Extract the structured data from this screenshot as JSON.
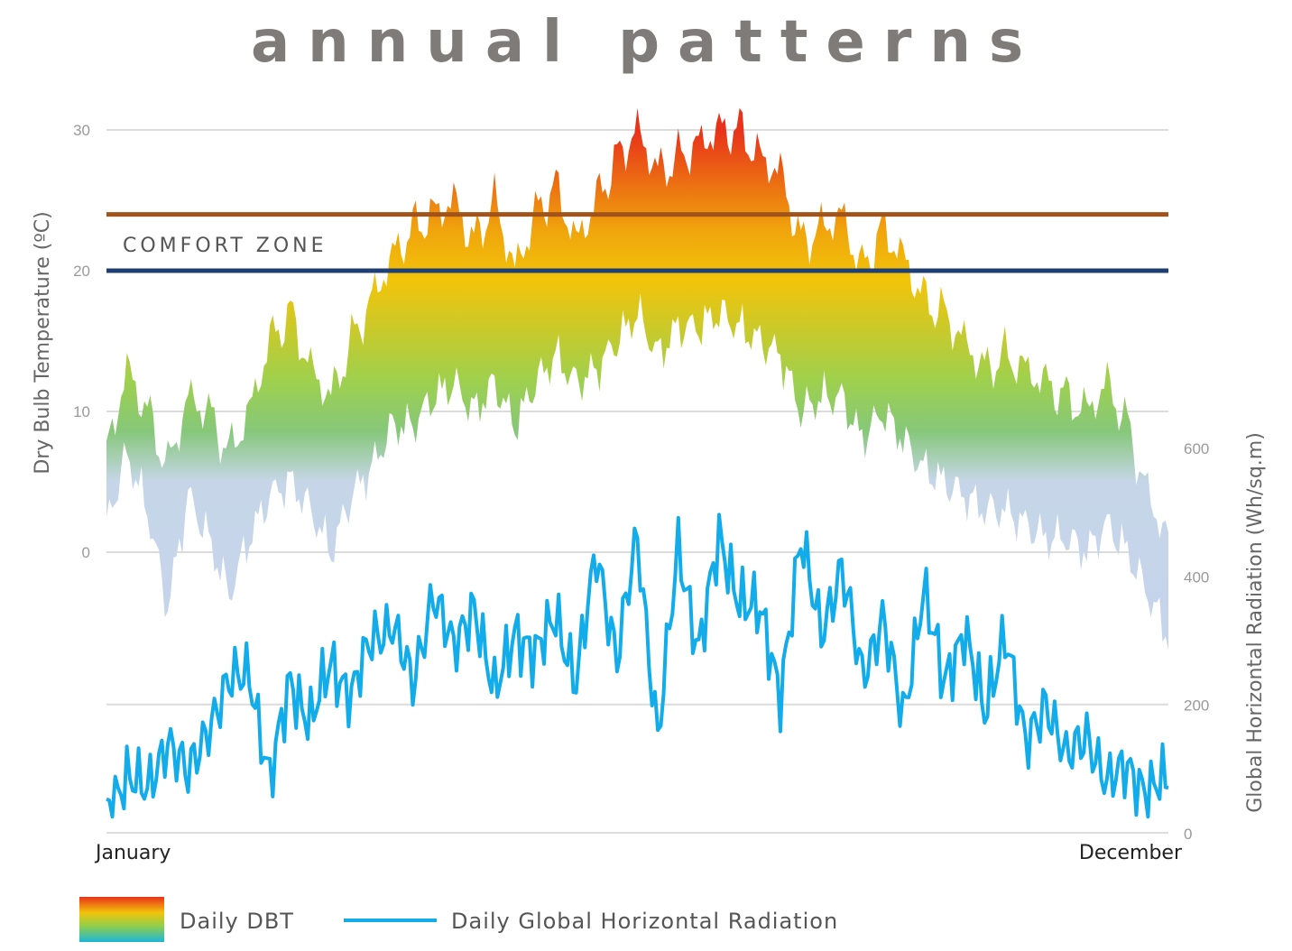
{
  "chart_data": {
    "type": "area",
    "title": "annual patterns",
    "x_start_label": "January",
    "x_end_label": "December",
    "y_left": {
      "label": "Dry Bulb Temperature  (ºC)",
      "ticks": [
        0,
        10,
        20,
        30
      ],
      "lim": [
        -20,
        30
      ]
    },
    "y_right": {
      "label": "Global Horizontal Radiation  (Wh/sq.m)",
      "ticks": [
        0,
        200,
        400,
        600
      ],
      "lim": [
        0,
        600
      ]
    },
    "comfort_zone": {
      "label": "COMFORT ZONE",
      "lower": 20,
      "upper": 24,
      "lower_color": "#1f3f73",
      "upper_color": "#a0541b"
    },
    "series": [
      {
        "name": "Daily DBT",
        "kind": "range-band",
        "x": [
          1,
          8,
          15,
          22,
          29,
          36,
          43,
          50,
          57,
          64,
          71,
          78,
          85,
          92,
          99,
          106,
          113,
          120,
          127,
          134,
          141,
          148,
          155,
          162,
          169,
          176,
          183,
          190,
          197,
          204,
          211,
          218,
          225,
          232,
          239,
          246,
          253,
          260,
          267,
          274,
          281,
          288,
          295,
          302,
          309,
          316,
          323,
          330,
          337,
          344,
          351,
          358,
          365
        ],
        "high": [
          7,
          13,
          10,
          6,
          11,
          10,
          7,
          10,
          15,
          17,
          13,
          11,
          15,
          18,
          21,
          23,
          24,
          25,
          22,
          25,
          20,
          24,
          26,
          22,
          25,
          28,
          30,
          27,
          28,
          29,
          30,
          30,
          28,
          27,
          22,
          23,
          24,
          20,
          23,
          21,
          18,
          17,
          15,
          13,
          14,
          13,
          12,
          11,
          10,
          12,
          9,
          4,
          1
        ],
        "low": [
          2,
          7,
          3,
          -4,
          4,
          1,
          -3,
          1,
          4,
          5,
          3,
          0,
          4,
          6,
          9,
          9,
          11,
          12,
          10,
          12,
          9,
          12,
          14,
          12,
          13,
          15,
          17,
          14,
          16,
          16,
          17,
          16,
          15,
          14,
          10,
          11,
          11,
          8,
          10,
          8,
          6,
          5,
          4,
          3,
          3,
          2,
          1,
          1,
          0,
          2,
          0,
          -3,
          -6
        ],
        "colors": {
          "hot": "#e83a1c",
          "warm": "#f0ba0a",
          "mild": "#8fce4b",
          "cool": "#c5d3ea"
        }
      },
      {
        "name": "Daily Global Horizontal Radiation",
        "kind": "line",
        "axis": "right",
        "color": "#12acea",
        "x": [
          1,
          8,
          15,
          22,
          29,
          36,
          43,
          50,
          57,
          64,
          71,
          78,
          85,
          92,
          99,
          106,
          113,
          120,
          127,
          134,
          141,
          148,
          155,
          162,
          169,
          176,
          183,
          190,
          197,
          204,
          211,
          218,
          225,
          232,
          239,
          246,
          253,
          260,
          267,
          274,
          281,
          288,
          295,
          302,
          309,
          316,
          323,
          330,
          337,
          344,
          351,
          358,
          365
        ],
        "values": [
          30,
          95,
          60,
          150,
          85,
          170,
          230,
          255,
          75,
          240,
          170,
          265,
          215,
          300,
          330,
          225,
          380,
          280,
          360,
          210,
          320,
          270,
          345,
          230,
          440,
          270,
          460,
          150,
          440,
          290,
          450,
          370,
          340,
          220,
          450,
          320,
          405,
          250,
          330,
          180,
          380,
          230,
          320,
          180,
          320,
          130,
          210,
          110,
          160,
          70,
          110,
          55,
          90
        ]
      }
    ],
    "legend": [
      "Daily DBT",
      "Daily Global Horizontal Radiation"
    ],
    "grid": true
  }
}
